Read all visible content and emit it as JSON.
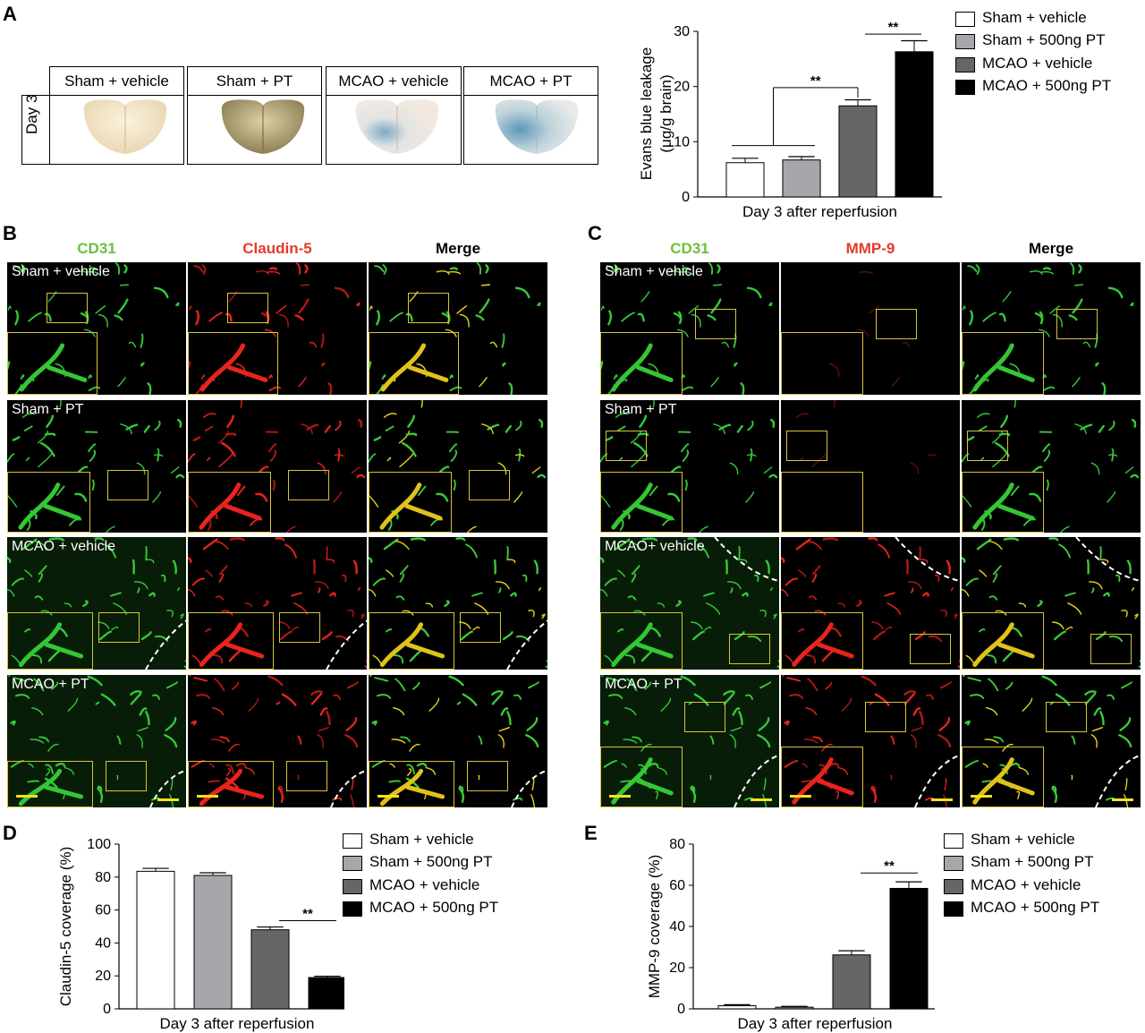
{
  "panels": {
    "A": "A",
    "B": "B",
    "C": "C",
    "D": "D",
    "E": "E"
  },
  "panelA": {
    "headers": [
      "Sham + vehicle",
      "Sham + PT",
      "MCAO + vehicle",
      "MCAO + PT"
    ],
    "row_label": "Day 3"
  },
  "panelB": {
    "columns": [
      "CD31",
      "Claudin-5",
      "Merge"
    ],
    "column_colors": [
      "#6dbf3a",
      "#e53a2a",
      "#000000"
    ],
    "rows": [
      "Sham + vehicle",
      "Sham + PT",
      "MCAO + vehicle",
      "MCAO + PT"
    ]
  },
  "panelC": {
    "columns": [
      "CD31",
      "MMP-9",
      "Merge"
    ],
    "column_colors": [
      "#6dbf3a",
      "#e53a2a",
      "#000000"
    ],
    "rows": [
      "Sham + vehicle",
      "Sham + PT",
      "MCAO+ vehicle",
      "MCAO + PT"
    ]
  },
  "legend": [
    "Sham + vehicle",
    "Sham + 500ng PT",
    "MCAO + vehicle",
    "MCAO + 500ng PT"
  ],
  "chart_data": [
    {
      "id": "A",
      "type": "bar",
      "categories": [
        "Sham + vehicle",
        "Sham + 500ng PT",
        "MCAO + vehicle",
        "MCAO + 500ng PT"
      ],
      "values": [
        6.2,
        6.7,
        16.5,
        26.3
      ],
      "errors": [
        0.8,
        0.6,
        1.1,
        2.0
      ],
      "colors": [
        "#ffffff",
        "#a7a7ab",
        "#666666",
        "#000000"
      ],
      "xlabel": "Day 3 after reperfusion",
      "ylabel_line1": "Evans blue  leakage",
      "ylabel_line2": "(μg/g brain)",
      "ylim": [
        0,
        30
      ],
      "yticks": [
        0,
        10,
        20,
        30
      ],
      "significance": [
        "**",
        "**"
      ]
    },
    {
      "id": "D",
      "type": "bar",
      "categories": [
        "Sham + vehicle",
        "Sham + 500ng PT",
        "MCAO + vehicle",
        "MCAO + 500ng PT"
      ],
      "values": [
        83.5,
        81,
        48,
        19
      ],
      "errors": [
        1.8,
        1.6,
        1.7,
        0.8
      ],
      "colors": [
        "#ffffff",
        "#a7a7ab",
        "#666666",
        "#000000"
      ],
      "xlabel": "Day 3 after reperfusion",
      "ylabel": "Claudin-5 coverage (%)",
      "ylim": [
        0,
        100
      ],
      "yticks": [
        0,
        20,
        40,
        60,
        80,
        100
      ],
      "significance": [
        "**"
      ]
    },
    {
      "id": "E",
      "type": "bar",
      "categories": [
        "Sham + vehicle",
        "Sham + 500ng PT",
        "MCAO + vehicle",
        "MCAO + 500ng PT"
      ],
      "values": [
        1.5,
        0.8,
        26.2,
        58.5
      ],
      "errors": [
        0.5,
        0.4,
        2.0,
        3.2
      ],
      "colors": [
        "#ffffff",
        "#a7a7ab",
        "#666666",
        "#000000"
      ],
      "xlabel": "Day 3 after reperfusion",
      "ylabel": "MMP-9 coverage (%)",
      "ylim": [
        0,
        80
      ],
      "yticks": [
        0,
        20,
        40,
        60,
        80
      ],
      "significance": [
        "**"
      ]
    }
  ]
}
